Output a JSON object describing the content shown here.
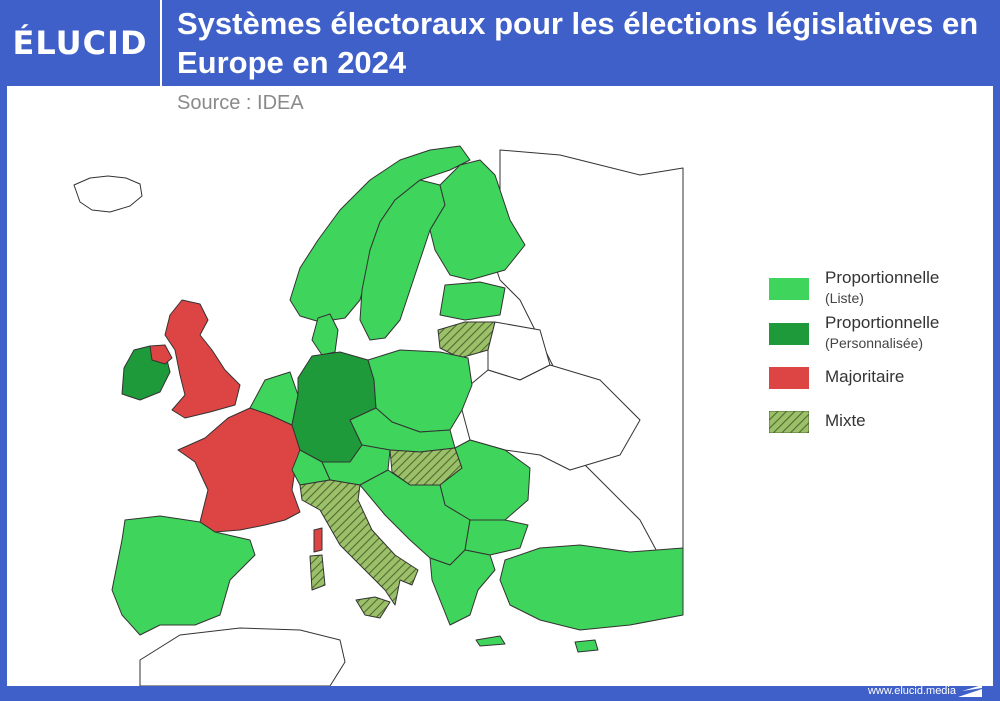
{
  "brand": {
    "logo": "ÉLUCID",
    "website": "www.elucid.media"
  },
  "title": "Systèmes électoraux pour les élections législatives en Europe en 2024",
  "source": "Source : IDEA",
  "colors": {
    "header_bg": "#3f5fc9",
    "proportional_list": "#3fd45b",
    "proportional_personalized": "#1e9a3a",
    "majoritarian": "#dd4545",
    "mixed": "#8db65c",
    "no_data": "#ffffff"
  },
  "legend": [
    {
      "key": "proportional_list",
      "label": "Proportionnelle",
      "sublabel": "(Liste)"
    },
    {
      "key": "proportional_personalized",
      "label": "Proportionnelle",
      "sublabel": "(Personnalisée)"
    },
    {
      "key": "majoritarian",
      "label": "Majoritaire",
      "sublabel": ""
    },
    {
      "key": "mixed",
      "label": "Mixte",
      "sublabel": ""
    }
  ]
}
